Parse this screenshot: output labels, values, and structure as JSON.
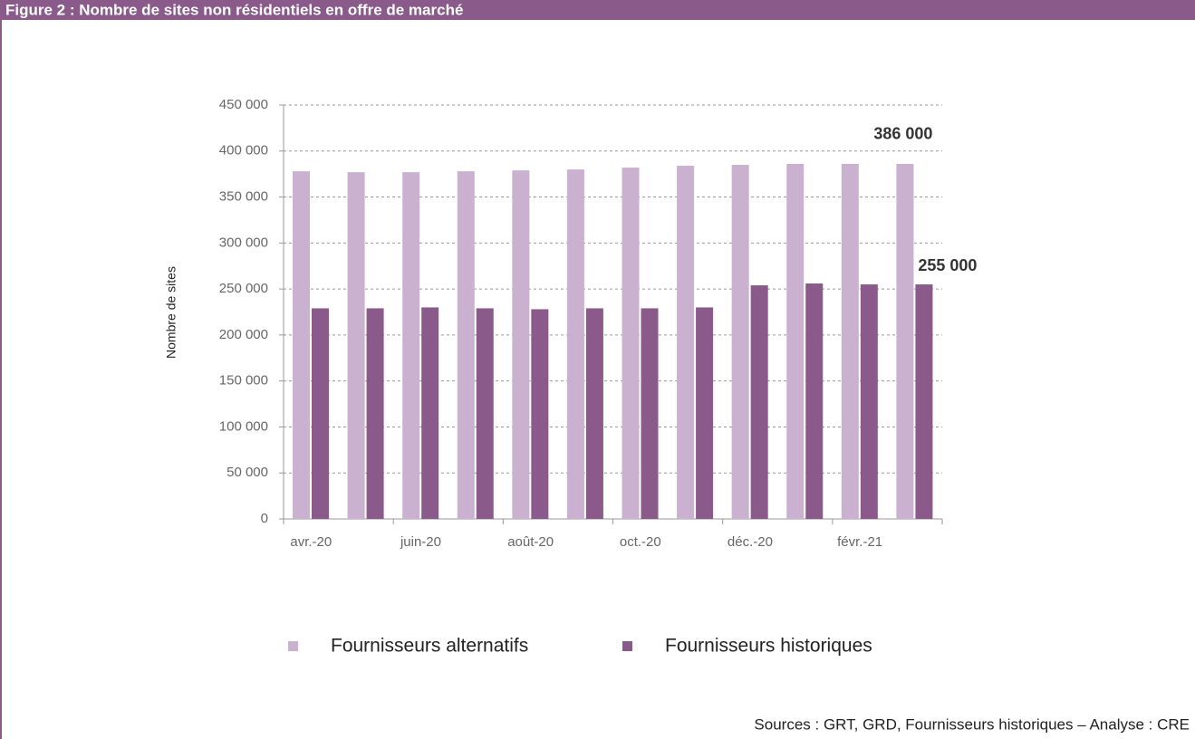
{
  "header": {
    "title": "Figure 2 : Nombre de sites non résidentiels en offre de marché"
  },
  "chart_data": {
    "type": "bar",
    "ylabel": "Nombre de sites",
    "categories": [
      "avr.-20",
      null,
      "juin-20",
      null,
      "août-20",
      null,
      "oct.-20",
      null,
      "déc.-20",
      null,
      "févr.-21",
      null
    ],
    "series": [
      {
        "name": "Fournisseurs alternatifs",
        "color": "#c9b1cf",
        "values": [
          378000,
          377000,
          377000,
          378000,
          379000,
          380000,
          382000,
          384000,
          385000,
          386000,
          386000,
          386000
        ],
        "value_labels": [
          null,
          null,
          null,
          null,
          null,
          null,
          null,
          null,
          null,
          null,
          null,
          "386 000"
        ]
      },
      {
        "name": "Fournisseurs historiques",
        "color": "#8a5a8a",
        "values": [
          229000,
          229000,
          230000,
          229000,
          228000,
          229000,
          229000,
          230000,
          254000,
          256000,
          255000,
          255000
        ],
        "value_labels": [
          null,
          null,
          null,
          null,
          null,
          null,
          null,
          null,
          null,
          null,
          null,
          "255 000"
        ]
      }
    ],
    "ylim": [
      0,
      450000
    ],
    "yticks": [
      0,
      {
        "value": 50000,
        "label": "50 000"
      },
      {
        "value": 100000,
        "label": "100 000"
      },
      {
        "value": 150000,
        "label": "150 000"
      },
      {
        "value": 200000,
        "label": "200 000"
      },
      {
        "value": 250000,
        "label": "250 000"
      },
      {
        "value": 300000,
        "label": "300 000"
      },
      {
        "value": 350000,
        "label": "350 000"
      },
      {
        "value": 400000,
        "label": "400 000"
      },
      {
        "value": 450000,
        "label": "450 000"
      }
    ],
    "grid": true,
    "legend": "bottom"
  },
  "footer": {
    "source": "Sources : GRT, GRD, Fournisseurs historiques – Analyse : CRE"
  }
}
